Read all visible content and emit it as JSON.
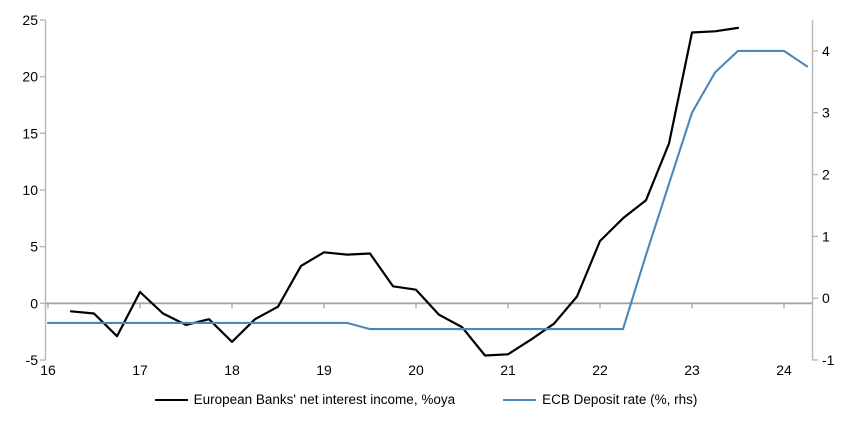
{
  "chart_data": {
    "type": "line",
    "title": "",
    "grid": false,
    "zero_line": true,
    "legend_position": "bottom",
    "axis_color": "#b7b7b7",
    "zero_line_color": "#a6a6a6",
    "text_color": "#000000",
    "x_axis": {
      "tick_labels": [
        "16",
        "17",
        "18",
        "19",
        "20",
        "21",
        "22",
        "23",
        "24"
      ],
      "tick_values": [
        16,
        17,
        18,
        19,
        20,
        21,
        22,
        23,
        24
      ],
      "range": [
        15.97,
        24.32
      ]
    },
    "left_axis": {
      "tick_labels": [
        "-5",
        "0",
        "5",
        "10",
        "15",
        "20",
        "25"
      ],
      "tick_values": [
        -5,
        0,
        5,
        10,
        15,
        20,
        25
      ],
      "range": [
        -5,
        25
      ]
    },
    "right_axis": {
      "tick_labels": [
        "-1",
        "0",
        "1",
        "2",
        "3",
        "4"
      ],
      "tick_values": [
        -1,
        0,
        1,
        2,
        3,
        4
      ],
      "range": [
        -1,
        4.5
      ]
    },
    "series": [
      {
        "name": "European Banks' net interest income, %oya",
        "axis": "left",
        "color": "#000000",
        "stroke_width": 2.2,
        "points": [
          [
            16.25,
            -0.7
          ],
          [
            16.5,
            -0.9
          ],
          [
            16.75,
            -2.9
          ],
          [
            17.0,
            1.0
          ],
          [
            17.25,
            -0.9
          ],
          [
            17.5,
            -1.9
          ],
          [
            17.75,
            -1.4
          ],
          [
            18.0,
            -3.4
          ],
          [
            18.25,
            -1.4
          ],
          [
            18.5,
            -0.3
          ],
          [
            18.75,
            3.3
          ],
          [
            19.0,
            4.5
          ],
          [
            19.25,
            4.3
          ],
          [
            19.5,
            4.4
          ],
          [
            19.75,
            1.5
          ],
          [
            20.0,
            1.2
          ],
          [
            20.25,
            -1.0
          ],
          [
            20.5,
            -2.1
          ],
          [
            20.75,
            -4.6
          ],
          [
            21.0,
            -4.5
          ],
          [
            21.25,
            -3.2
          ],
          [
            21.5,
            -1.8
          ],
          [
            21.75,
            0.6
          ],
          [
            22.0,
            5.5
          ],
          [
            22.25,
            7.5
          ],
          [
            22.5,
            9.1
          ],
          [
            22.75,
            14.1
          ],
          [
            23.0,
            23.9
          ],
          [
            23.25,
            24.0
          ],
          [
            23.5,
            24.3
          ]
        ]
      },
      {
        "name": "ECB Deposit rate (%, rhs)",
        "axis": "right",
        "color": "#4e86bb",
        "stroke_width": 2.1,
        "points": [
          [
            16.0,
            -0.4
          ],
          [
            19.25,
            -0.4
          ],
          [
            19.5,
            -0.5
          ],
          [
            22.25,
            -0.5
          ],
          [
            22.5,
            0.7
          ],
          [
            22.75,
            1.85
          ],
          [
            23.0,
            3.0
          ],
          [
            23.25,
            3.65
          ],
          [
            23.5,
            4.0
          ],
          [
            24.0,
            4.0
          ],
          [
            24.25,
            3.75
          ]
        ]
      }
    ]
  }
}
